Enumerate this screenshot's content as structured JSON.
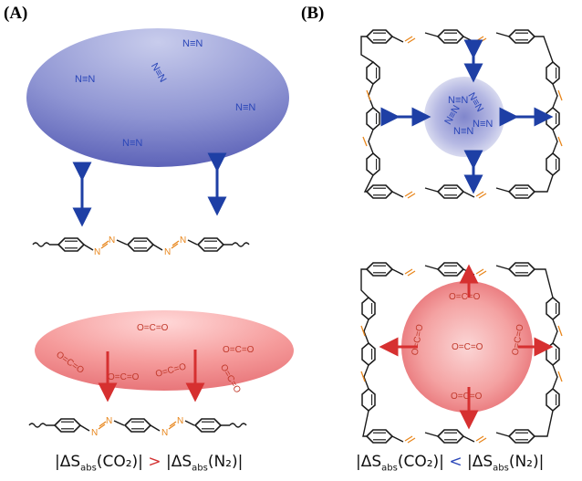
{
  "panels": {
    "a_label": "(A)",
    "b_label": "(B)"
  },
  "molecules": {
    "n2": "N≡N",
    "n2_angled": "N≡N",
    "co2": "O=C=O",
    "azo_n": "N"
  },
  "captions": {
    "a": {
      "delta": "|ΔS",
      "sub": "abs",
      "gas1": "(CO₂)|",
      "comparator": ">",
      "delta2": "|ΔS",
      "sub2": "abs",
      "gas2": "(N₂)|"
    },
    "b": {
      "delta": "|ΔS",
      "sub": "abs",
      "gas1": "(CO₂)|",
      "comparator": "<",
      "delta2": "|ΔS",
      "sub2": "abs",
      "gas2": "(N₂)|"
    }
  },
  "colors": {
    "n2_blue": "#2a46b8",
    "co2_red": "#d23030",
    "azo_orange": "#e8861c",
    "bond_black": "#1a1a1a"
  }
}
